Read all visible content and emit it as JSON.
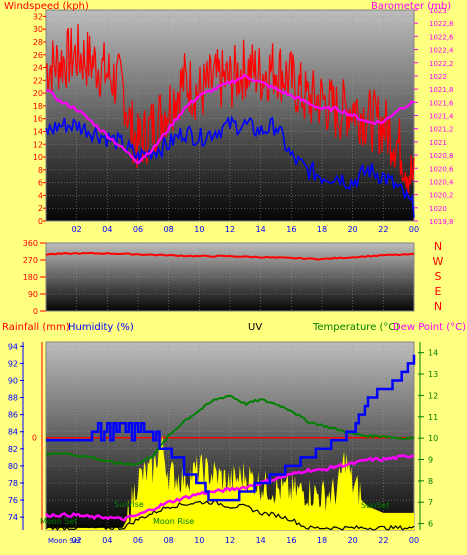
{
  "colors": {
    "background": "#ffff80",
    "windspeed_gust": "#ff0000",
    "windspeed_avg": "#0000ff",
    "barometer": "#ff00ff",
    "direction": "#ff0000",
    "rainfall": "#ff0000",
    "humidity": "#0000ff",
    "temperature": "#008000",
    "dewpoint": "#ff00ff",
    "uv": "#ffff00",
    "uv_black": "#000000"
  },
  "chart_data": [
    {
      "type": "line",
      "header": {
        "left": "Windspeed (kph)",
        "center": "",
        "right": "Barometer (mb)"
      },
      "x_ticks": [
        "02",
        "04",
        "06",
        "08",
        "10",
        "12",
        "14",
        "16",
        "18",
        "20",
        "22",
        "00"
      ],
      "x_range_hours": [
        0,
        24
      ],
      "y_left": {
        "range": [
          0,
          33
        ],
        "ticks": [
          "0",
          "2",
          "4",
          "6",
          "8",
          "10",
          "12",
          "14",
          "16",
          "18",
          "20",
          "22",
          "24",
          "26",
          "28",
          "30",
          "32"
        ]
      },
      "y_right": {
        "range": [
          1019.8,
          1023.0
        ],
        "ticks": [
          "1019,8",
          "1020",
          "1020,2",
          "1020,4",
          "1020,6",
          "1020,8",
          "1021",
          "1021,2",
          "1021,4",
          "1021,6",
          "1021,8",
          "1022",
          "1022,2",
          "1022,4",
          "1022,6",
          "1022,8",
          "1023"
        ]
      },
      "series": [
        {
          "name": "gust",
          "x": [
            0,
            1,
            2,
            3,
            4,
            5,
            5.5,
            6,
            7,
            8,
            9,
            10,
            11,
            12,
            13,
            14,
            15,
            16,
            17,
            18,
            19,
            20,
            21,
            22,
            23,
            24
          ],
          "values": [
            24,
            25,
            26,
            25,
            23,
            21,
            15,
            12,
            15,
            18,
            22,
            20,
            22,
            22,
            24,
            23,
            24,
            22,
            19,
            19,
            17,
            18,
            16,
            15,
            12,
            6
          ]
        },
        {
          "name": "average",
          "x": [
            0,
            1,
            2,
            3,
            4,
            5,
            6,
            7,
            8,
            9,
            10,
            11,
            12,
            13,
            14,
            15,
            16,
            17,
            18,
            19,
            20,
            21,
            22,
            23,
            24
          ],
          "values": [
            14,
            15,
            15,
            14,
            13,
            12,
            10,
            11,
            12,
            14,
            13,
            14,
            15,
            15,
            14,
            15,
            10,
            8,
            7,
            7,
            6,
            8,
            7,
            5,
            2
          ]
        },
        {
          "name": "barometer",
          "x": [
            0,
            1,
            2,
            3,
            4,
            5,
            6,
            7,
            8,
            9,
            10,
            11,
            12,
            13,
            14,
            15,
            16,
            17,
            18,
            19,
            20,
            21,
            22,
            23,
            24
          ],
          "values": [
            1021.8,
            1021.6,
            1021.5,
            1021.3,
            1021.1,
            1020.9,
            1020.7,
            1020.9,
            1021.2,
            1021.5,
            1021.7,
            1021.8,
            1021.9,
            1022.0,
            1021.9,
            1021.8,
            1021.7,
            1021.6,
            1021.5,
            1021.5,
            1021.4,
            1021.3,
            1021.3,
            1021.5,
            1021.6
          ]
        }
      ]
    },
    {
      "type": "line",
      "y_ticks": [
        "0",
        "90",
        "180",
        "270",
        "360"
      ],
      "y_range": [
        0,
        360
      ],
      "compass": [
        "N",
        "W",
        "S",
        "E",
        "N"
      ],
      "series": [
        {
          "name": "direction",
          "x": [
            0,
            2,
            4,
            6,
            8,
            10,
            12,
            14,
            16,
            18,
            20,
            22,
            24
          ],
          "values": [
            300,
            305,
            305,
            300,
            295,
            290,
            290,
            285,
            280,
            275,
            285,
            295,
            300
          ]
        }
      ]
    },
    {
      "type": "line",
      "header": {
        "rainfall": "Rainfall (mm)",
        "humidity": "Humidity (%)",
        "uv": "UV",
        "temperature": "Temperature (°C)",
        "dewpoint": "Dew Point (°C)"
      },
      "x_ticks": [
        "02",
        "04",
        "06",
        "08",
        "10",
        "12",
        "14",
        "16",
        "18",
        "20",
        "22",
        "00"
      ],
      "y_left": {
        "range": [
          72.5,
          94.5
        ],
        "ticks": [
          "74",
          "76",
          "78",
          "80",
          "82",
          "84",
          "86",
          "88",
          "90",
          "92",
          "94"
        ]
      },
      "y_right": {
        "range": [
          5.7,
          14.5
        ],
        "ticks": [
          "6",
          "7",
          "8",
          "9",
          "10",
          "11",
          "12",
          "13",
          "14"
        ]
      },
      "rain_tick": "0",
      "labels": {
        "moonset": "Moon Set",
        "moonrise": "Moon Rise",
        "sunrise": "Sunrise",
        "sunset": "SunSet"
      },
      "series": [
        {
          "name": "humidity",
          "x": [
            0,
            1,
            2,
            3,
            3.5,
            4,
            5,
            6,
            7,
            7.5,
            8,
            9,
            9.5,
            10,
            11,
            12,
            13,
            14,
            15,
            16,
            17,
            18,
            19,
            20,
            21,
            22,
            23,
            24
          ],
          "values": [
            83,
            83,
            83,
            84,
            84,
            84,
            84,
            84,
            84,
            82,
            81,
            80,
            79,
            78,
            76,
            76,
            77,
            78,
            79,
            80,
            81,
            82,
            83,
            84,
            88,
            89,
            90,
            93
          ]
        },
        {
          "name": "temperature",
          "x": [
            0,
            1,
            2,
            3,
            4,
            5,
            6,
            7,
            8,
            9,
            10,
            11,
            12,
            13,
            14,
            15,
            16,
            17,
            18,
            19,
            20,
            21,
            22,
            23,
            24
          ],
          "values": [
            9.3,
            9.3,
            9.2,
            9.1,
            8.9,
            8.8,
            8.8,
            9.2,
            10.1,
            10.8,
            11.3,
            11.8,
            12.0,
            11.6,
            11.8,
            11.6,
            11.3,
            10.8,
            10.6,
            10.4,
            10.2,
            10.1,
            10.1,
            10.0,
            10.0
          ]
        },
        {
          "name": "dewpoint",
          "x": [
            0,
            1,
            2,
            3,
            4,
            5,
            6,
            7,
            8,
            9,
            10,
            11,
            12,
            13,
            14,
            15,
            16,
            17,
            18,
            19,
            20,
            21,
            22,
            23,
            24
          ],
          "values": [
            6.4,
            6.4,
            6.4,
            6.3,
            6.3,
            6.2,
            6.4,
            6.7,
            7.0,
            7.2,
            7.4,
            7.5,
            7.6,
            7.7,
            7.9,
            8.1,
            8.3,
            8.5,
            8.5,
            8.7,
            8.8,
            9.0,
            9.0,
            9.1,
            9.2
          ]
        },
        {
          "name": "uv",
          "x": [
            0,
            5,
            5.5,
            6,
            7,
            7.5,
            8,
            9,
            10,
            11,
            12,
            13,
            14,
            15,
            16,
            17,
            18,
            19,
            19.5,
            20,
            21,
            22,
            23,
            24
          ],
          "values": [
            5.8,
            5.8,
            6.5,
            7.8,
            8.2,
            9.5,
            8.0,
            7.8,
            8.2,
            8.0,
            7.6,
            8.0,
            7.5,
            7.3,
            7.2,
            7.2,
            7.0,
            7.2,
            8.8,
            7.5,
            6.8,
            6.5,
            6.5,
            6.5
          ]
        },
        {
          "name": "uv_black",
          "x": [
            0,
            5,
            6,
            7,
            8,
            9,
            10,
            11,
            12,
            13,
            14,
            15,
            16,
            16.5,
            17,
            20,
            24
          ],
          "values": [
            5.8,
            5.8,
            6.2,
            6.5,
            6.8,
            6.9,
            7.0,
            7.0,
            6.8,
            6.8,
            6.5,
            6.4,
            6.2,
            6.0,
            5.8,
            5.8,
            5.8
          ]
        }
      ]
    }
  ]
}
